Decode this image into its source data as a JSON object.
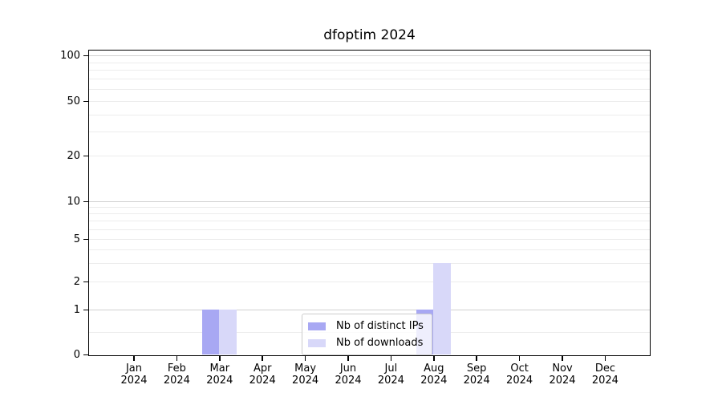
{
  "chart_data": {
    "type": "bar",
    "title": "dfoptim 2024",
    "categories": [
      "Jan 2024",
      "Feb 2024",
      "Mar 2024",
      "Apr 2024",
      "May 2024",
      "Jun 2024",
      "Jul 2024",
      "Aug 2024",
      "Sep 2024",
      "Oct 2024",
      "Nov 2024",
      "Dec 2024"
    ],
    "series": [
      {
        "name": "Nb of distinct IPs",
        "color": "#a8a8f3",
        "values": [
          0,
          0,
          1,
          0,
          0,
          0,
          0,
          1,
          0,
          0,
          0,
          0
        ]
      },
      {
        "name": "Nb of downloads",
        "color": "#d8d8f9",
        "values": [
          0,
          0,
          1,
          0,
          0,
          0,
          0,
          3,
          0,
          0,
          0,
          0
        ]
      }
    ],
    "xlabel": "",
    "ylabel": "",
    "yscale": "symlog",
    "y_ticks": [
      0,
      1,
      2,
      5,
      10,
      20,
      50,
      100
    ],
    "y_minor_gridlines": [
      0.5,
      2,
      3,
      4,
      5,
      6,
      7,
      8,
      9,
      20,
      30,
      40,
      50,
      60,
      70,
      80,
      90
    ],
    "y_major_gridlines": [
      1,
      10,
      100
    ],
    "ylim": [
      0,
      113
    ],
    "grid": "horizontal, major and minor",
    "legend_position": "lower center"
  },
  "colors": {
    "spine": "#000000",
    "major_grid": "#d0d0d0",
    "minor_grid": "#ececec",
    "background": "#ffffff"
  }
}
